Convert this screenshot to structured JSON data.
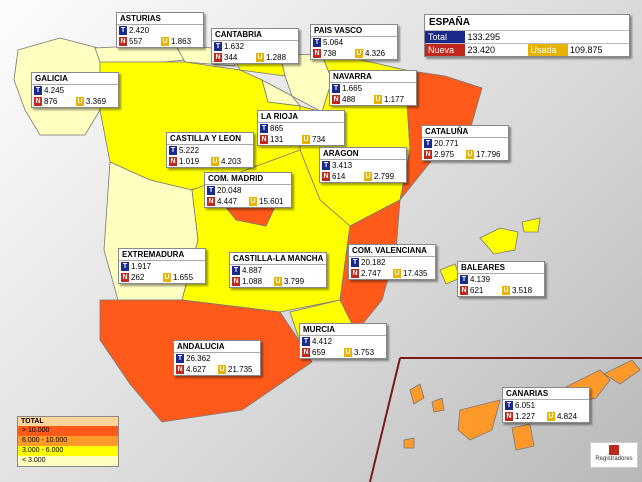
{
  "title": "ESPAÑA",
  "summary": {
    "total_label": "Total",
    "total": "133.295",
    "nueva_label": "Nueva",
    "nueva": "23.420",
    "usada_label": "Usada",
    "usada": "109.875"
  },
  "labels": {
    "t": "T",
    "n": "N",
    "u": "U"
  },
  "regions": [
    {
      "name": "ASTURIAS",
      "t": "2.420",
      "n": "557",
      "u": "1.863"
    },
    {
      "name": "CANTABRIA",
      "t": "1.632",
      "n": "344",
      "u": "1.288"
    },
    {
      "name": "PAIS VASCO",
      "t": "5.064",
      "n": "738",
      "u": "4.326"
    },
    {
      "name": "GALICIA",
      "t": "4.245",
      "n": "876",
      "u": "3.369"
    },
    {
      "name": "NAVARRA",
      "t": "1.665",
      "n": "488",
      "u": "1.177"
    },
    {
      "name": "LA RIOJA",
      "t": "865",
      "n": "131",
      "u": "734"
    },
    {
      "name": "CASTILLA Y LEON",
      "t": "5.222",
      "n": "1.019",
      "u": "4.203"
    },
    {
      "name": "ARAGON",
      "t": "3.413",
      "n": "614",
      "u": "2.799"
    },
    {
      "name": "CATALUÑA",
      "t": "20.771",
      "n": "2.975",
      "u": "17.796"
    },
    {
      "name": "COM. MADRID",
      "t": "20.048",
      "n": "4.447",
      "u": "15.601"
    },
    {
      "name": "EXTREMADURA",
      "t": "1.917",
      "n": "262",
      "u": "1.655"
    },
    {
      "name": "CASTILLA-LA MANCHA",
      "t": "4.887",
      "n": "1.088",
      "u": "3.799"
    },
    {
      "name": "COM. VALENCIANA",
      "t": "20.182",
      "n": "2.747",
      "u": "17.435"
    },
    {
      "name": "BALEARES",
      "t": "4.139",
      "n": "621",
      "u": "3.518"
    },
    {
      "name": "MURCIA",
      "t": "4.412",
      "n": "659",
      "u": "3.753"
    },
    {
      "name": "ANDALUCIA",
      "t": "26.362",
      "n": "4.627",
      "u": "21.735"
    },
    {
      "name": "CANARIAS",
      "t": "6.051",
      "n": "1.227",
      "u": "4.824"
    }
  ],
  "legend": {
    "title": "TOTAL",
    "items": [
      {
        "label": "> 10.000",
        "color": "#ff5a1a"
      },
      {
        "label": "6.000 - 10.000",
        "color": "#ff9a2a"
      },
      {
        "label": "3.000 - 6.000",
        "color": "#ffff00"
      },
      {
        "label": "< 3.000",
        "color": "#ffffc0"
      }
    ]
  },
  "logo": "Registradores"
}
